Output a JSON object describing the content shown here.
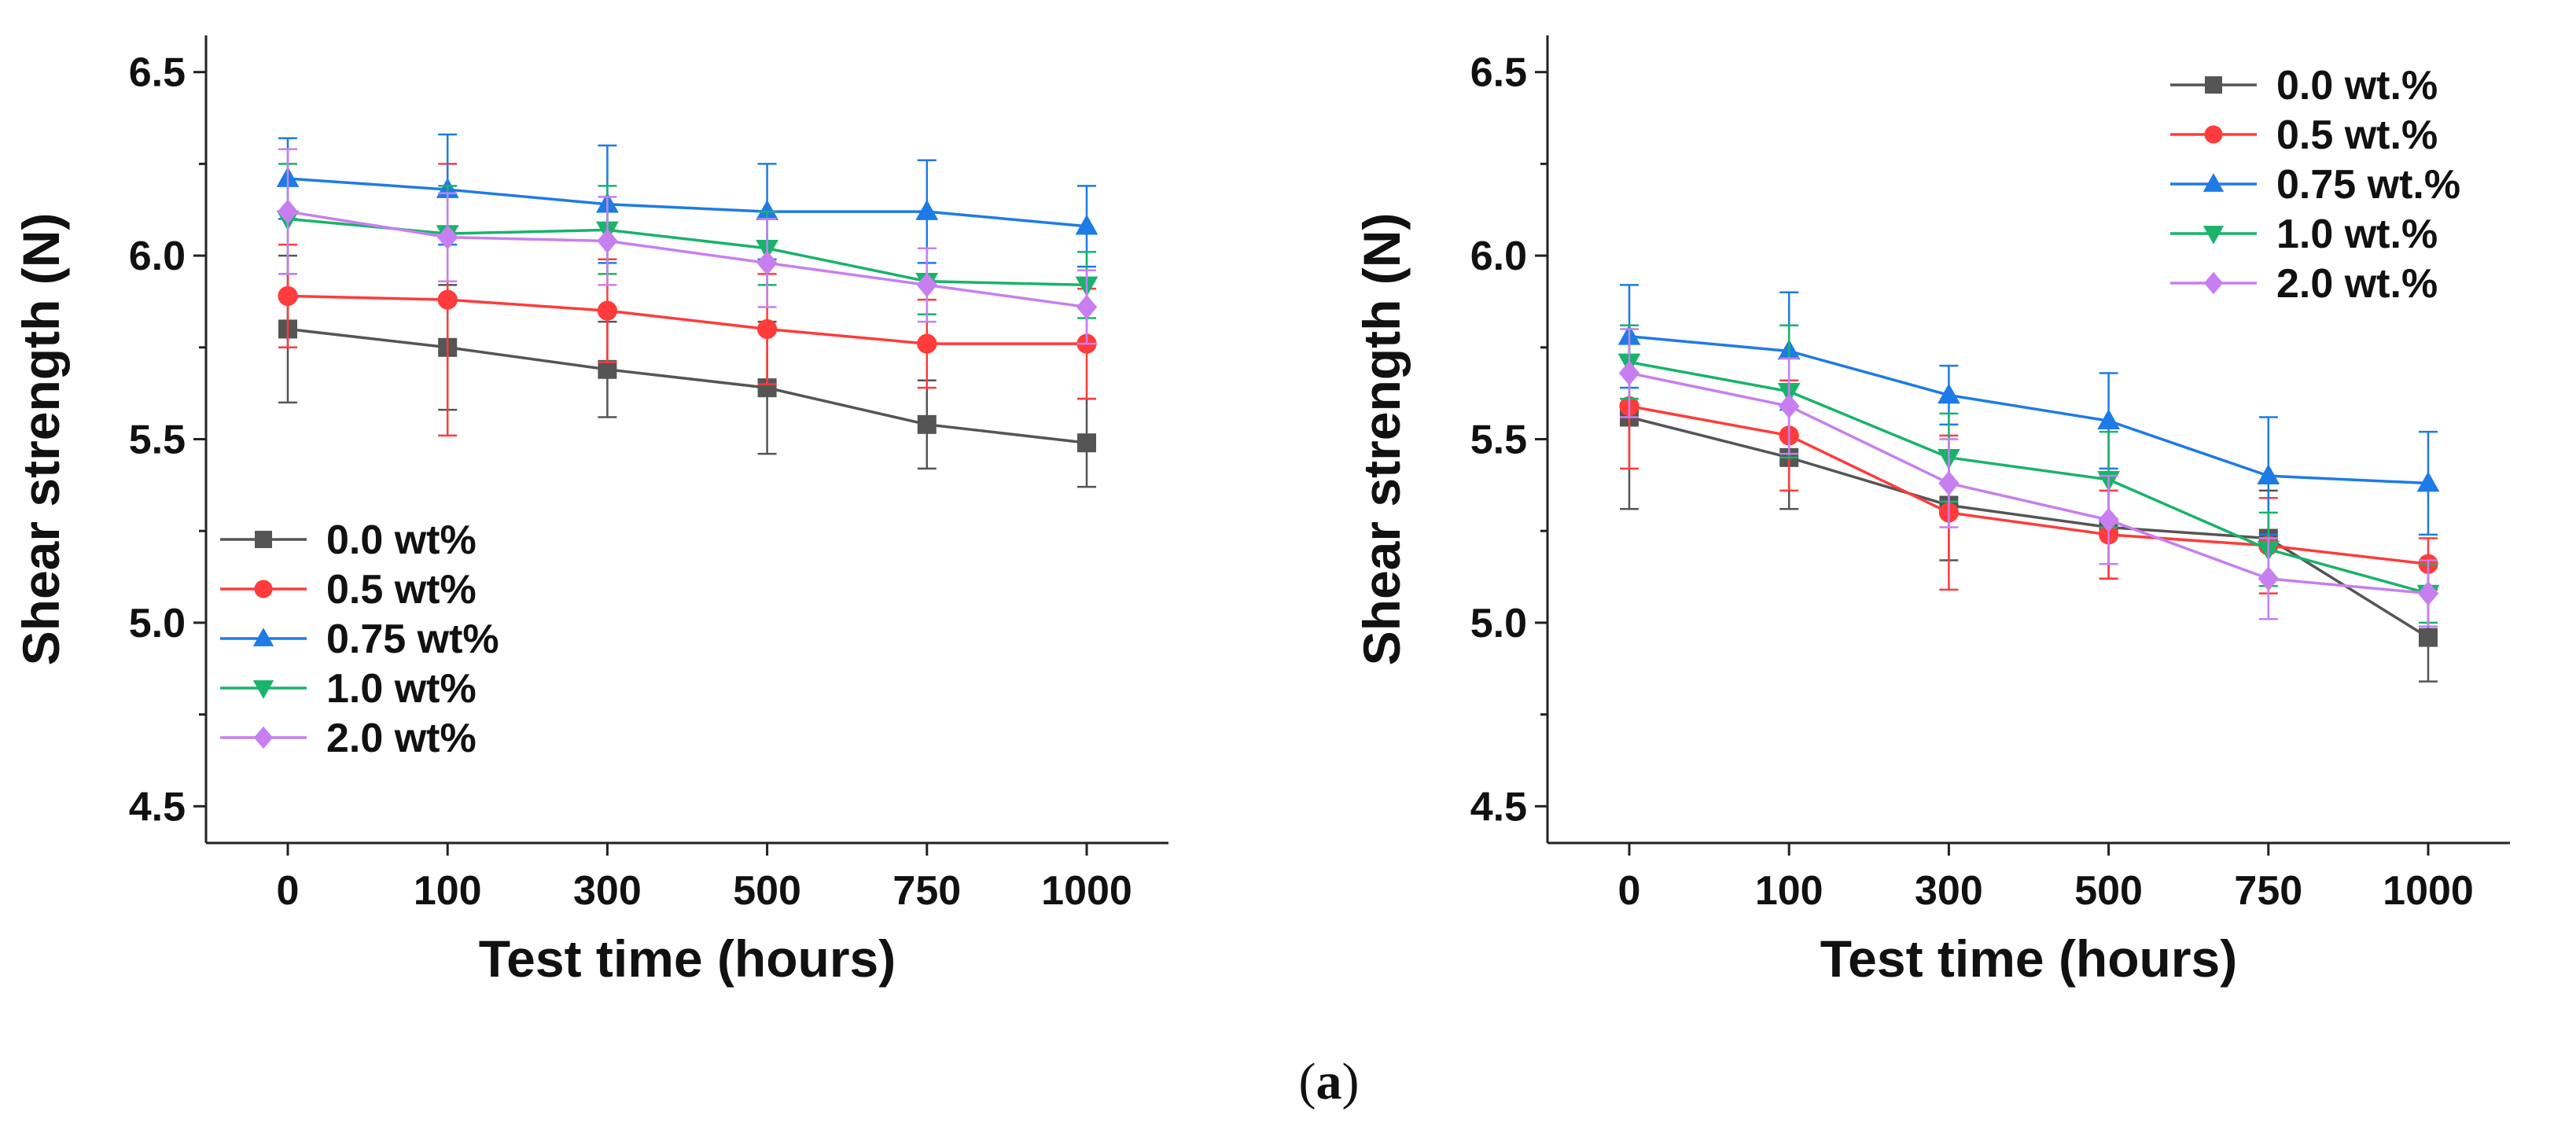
{
  "caption": {
    "open": "(",
    "letter": "a",
    "close": ")"
  },
  "chart_data": [
    {
      "type": "line",
      "title": "",
      "xlabel": "Test time (hours)",
      "ylabel": "Shear strength (N)",
      "categories": [
        "0",
        "100",
        "300",
        "500",
        "750",
        "1000"
      ],
      "ylim": [
        4.4,
        6.6
      ],
      "yticks": [
        "4.5",
        "5.0",
        "5.5",
        "6.0",
        "6.5"
      ],
      "legend_position": "bottom-left",
      "series": [
        {
          "name": "0.0 wt%",
          "color": "#555555",
          "marker": "square",
          "values": [
            5.8,
            5.75,
            5.69,
            5.64,
            5.54,
            5.49
          ],
          "errors": [
            0.2,
            0.17,
            0.13,
            0.18,
            0.12,
            0.12
          ]
        },
        {
          "name": "0.5 wt%",
          "color": "#ff3b3b",
          "marker": "circle",
          "values": [
            5.89,
            5.88,
            5.85,
            5.8,
            5.76,
            5.76
          ],
          "errors": [
            0.14,
            0.37,
            0.14,
            0.15,
            0.12,
            0.15
          ]
        },
        {
          "name": "0.75 wt%",
          "color": "#1e7be6",
          "marker": "triangle-up",
          "values": [
            6.21,
            6.18,
            6.14,
            6.12,
            6.12,
            6.08
          ],
          "errors": [
            0.11,
            0.15,
            0.16,
            0.13,
            0.14,
            0.11
          ]
        },
        {
          "name": "1.0 wt%",
          "color": "#19b36b",
          "marker": "triangle-down",
          "values": [
            6.1,
            6.06,
            6.07,
            6.02,
            5.93,
            5.92
          ],
          "errors": [
            0.15,
            0.13,
            0.12,
            0.1,
            0.09,
            0.09
          ]
        },
        {
          "name": "2.0 wt%",
          "color": "#c77ff0",
          "marker": "diamond",
          "values": [
            6.12,
            6.05,
            6.04,
            5.98,
            5.92,
            5.86
          ],
          "errors": [
            0.17,
            0.12,
            0.12,
            0.12,
            0.1,
            0.1
          ]
        }
      ]
    },
    {
      "type": "line",
      "title": "",
      "xlabel": "Test time (hours)",
      "ylabel": "Shear strength (N)",
      "categories": [
        "0",
        "100",
        "300",
        "500",
        "750",
        "1000"
      ],
      "ylim": [
        4.4,
        6.6
      ],
      "yticks": [
        "4.5",
        "5.0",
        "5.5",
        "6.0",
        "6.5"
      ],
      "legend_position": "top-right",
      "series": [
        {
          "name": "0.0 wt.%",
          "color": "#555555",
          "marker": "square",
          "values": [
            5.56,
            5.45,
            5.32,
            5.26,
            5.23,
            4.96
          ],
          "errors": [
            0.25,
            0.14,
            0.15,
            0.14,
            0.13,
            0.12
          ]
        },
        {
          "name": "0.5 wt.%",
          "color": "#ff3b3b",
          "marker": "circle",
          "values": [
            5.59,
            5.51,
            5.3,
            5.24,
            5.21,
            5.16
          ],
          "errors": [
            0.17,
            0.15,
            0.21,
            0.12,
            0.13,
            0.07
          ]
        },
        {
          "name": "0.75 wt.%",
          "color": "#1e7be6",
          "marker": "triangle-up",
          "values": [
            5.78,
            5.74,
            5.62,
            5.55,
            5.4,
            5.38
          ],
          "errors": [
            0.14,
            0.16,
            0.08,
            0.13,
            0.16,
            0.14
          ]
        },
        {
          "name": "1.0 wt.%",
          "color": "#19b36b",
          "marker": "triangle-down",
          "values": [
            5.71,
            5.63,
            5.45,
            5.39,
            5.2,
            5.08
          ],
          "errors": [
            0.1,
            0.18,
            0.12,
            0.13,
            0.1,
            0.08
          ]
        },
        {
          "name": "2.0 wt.%",
          "color": "#c77ff0",
          "marker": "diamond",
          "values": [
            5.68,
            5.59,
            5.38,
            5.28,
            5.12,
            5.08
          ],
          "errors": [
            0.12,
            0.13,
            0.12,
            0.12,
            0.11,
            0.09
          ]
        }
      ]
    }
  ]
}
